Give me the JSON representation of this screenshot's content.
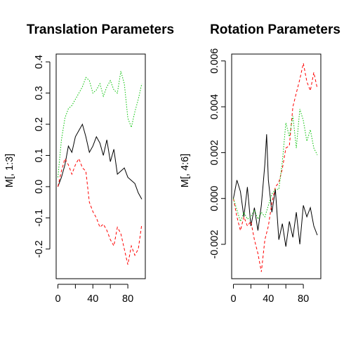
{
  "chart_data": [
    {
      "type": "line",
      "title": "Translation Parameters",
      "xlabel": "",
      "ylabel": "M[, 1:3]",
      "xlim": [
        -2,
        100
      ],
      "ylim": [
        -0.295,
        0.425
      ],
      "xticks": [
        0,
        40,
        80
      ],
      "xtick_labels": [
        "0",
        "40",
        "80"
      ],
      "yticks": [
        -0.2,
        -0.1,
        0.0,
        0.1,
        0.2,
        0.3,
        0.4
      ],
      "ytick_labels": [
        "-0.2",
        "-0.1",
        "0.0",
        "0.1",
        "0.2",
        "0.3",
        "0.4"
      ],
      "grid": false,
      "series": [
        {
          "color": "#000000",
          "dash": "solid",
          "x": [
            0,
            4,
            8,
            12,
            16,
            20,
            24,
            28,
            32,
            36,
            40,
            44,
            48,
            52,
            56,
            60,
            64,
            68,
            72,
            76,
            80,
            84,
            88,
            92,
            96
          ],
          "values": [
            0.0,
            0.03,
            0.07,
            0.13,
            0.11,
            0.16,
            0.18,
            0.2,
            0.16,
            0.11,
            0.13,
            0.16,
            0.14,
            0.1,
            0.15,
            0.08,
            0.12,
            0.04,
            0.05,
            0.06,
            0.03,
            0.02,
            0.01,
            -0.02,
            -0.04
          ]
        },
        {
          "color": "#ff0000",
          "dash": "dashed",
          "x": [
            0,
            4,
            8,
            12,
            16,
            20,
            24,
            28,
            32,
            36,
            40,
            44,
            48,
            52,
            56,
            60,
            64,
            68,
            72,
            76,
            80,
            84,
            88,
            92,
            96
          ],
          "values": [
            0.0,
            0.05,
            0.09,
            0.07,
            0.04,
            0.07,
            0.09,
            0.06,
            0.05,
            -0.05,
            -0.08,
            -0.1,
            -0.13,
            -0.12,
            -0.14,
            -0.17,
            -0.19,
            -0.13,
            -0.15,
            -0.2,
            -0.25,
            -0.19,
            -0.22,
            -0.2,
            -0.12
          ]
        },
        {
          "color": "#00c000",
          "dash": "dotted",
          "x": [
            0,
            4,
            8,
            12,
            16,
            20,
            24,
            28,
            32,
            36,
            40,
            44,
            48,
            52,
            56,
            60,
            64,
            68,
            72,
            76,
            80,
            84,
            88,
            92,
            96
          ],
          "values": [
            0.03,
            0.15,
            0.22,
            0.25,
            0.26,
            0.28,
            0.3,
            0.32,
            0.35,
            0.34,
            0.3,
            0.31,
            0.33,
            0.29,
            0.32,
            0.34,
            0.31,
            0.3,
            0.37,
            0.33,
            0.22,
            0.19,
            0.24,
            0.28,
            0.33
          ]
        }
      ]
    },
    {
      "type": "line",
      "title": "Rotation Parameters",
      "xlabel": "",
      "ylabel": "M[, 4:6]",
      "xlim": [
        -2,
        100
      ],
      "ylim": [
        -0.0035,
        0.0063
      ],
      "xticks": [
        0,
        40,
        80
      ],
      "xtick_labels": [
        "0",
        "40",
        "80"
      ],
      "yticks": [
        -0.002,
        0.0,
        0.002,
        0.004,
        0.006
      ],
      "ytick_labels": [
        "-0.002",
        "0.000",
        "0.002",
        "0.004",
        "0.006"
      ],
      "grid": false,
      "series": [
        {
          "color": "#000000",
          "dash": "solid",
          "x": [
            0,
            4,
            8,
            12,
            16,
            20,
            24,
            28,
            32,
            36,
            38,
            40,
            44,
            48,
            52,
            56,
            60,
            64,
            68,
            72,
            76,
            80,
            84,
            88,
            92,
            96
          ],
          "values": [
            0.0,
            0.0008,
            0.0003,
            -0.0008,
            0.0005,
            -0.0012,
            -0.0004,
            -0.0014,
            -0.0003,
            0.0015,
            0.0028,
            0.0008,
            -0.0006,
            0.0004,
            -0.0018,
            -0.0011,
            -0.0021,
            -0.001,
            -0.0017,
            -0.0006,
            -0.002,
            -0.0003,
            -0.0008,
            -0.0004,
            -0.0012,
            -0.0016
          ]
        },
        {
          "color": "#ff0000",
          "dash": "dashed",
          "x": [
            0,
            4,
            8,
            12,
            16,
            20,
            24,
            28,
            32,
            36,
            40,
            44,
            48,
            52,
            56,
            60,
            64,
            68,
            72,
            76,
            80,
            84,
            88,
            92,
            96
          ],
          "values": [
            0.0,
            -0.0008,
            -0.0014,
            -0.0008,
            -0.0012,
            -0.001,
            -0.0018,
            -0.0024,
            -0.0032,
            -0.0018,
            -0.0012,
            -0.0002,
            0.0005,
            0.0007,
            0.0013,
            0.0022,
            0.0023,
            0.004,
            0.0046,
            0.0052,
            0.0059,
            0.0051,
            0.0047,
            0.0055,
            0.0048
          ]
        },
        {
          "color": "#00c000",
          "dash": "dotted",
          "x": [
            0,
            4,
            8,
            12,
            16,
            20,
            24,
            28,
            32,
            36,
            40,
            44,
            48,
            52,
            56,
            60,
            64,
            68,
            72,
            76,
            80,
            84,
            88,
            92,
            96
          ],
          "values": [
            0.0,
            -0.0005,
            -0.001,
            -0.0006,
            -0.0009,
            -0.0008,
            -0.0005,
            -0.0009,
            -0.0006,
            -0.0008,
            -0.0003,
            0.0002,
            0.0004,
            0.0004,
            0.0016,
            0.0033,
            0.0027,
            0.0036,
            0.0022,
            0.0039,
            0.0034,
            0.0025,
            0.003,
            0.0022,
            0.0019
          ]
        }
      ]
    }
  ]
}
